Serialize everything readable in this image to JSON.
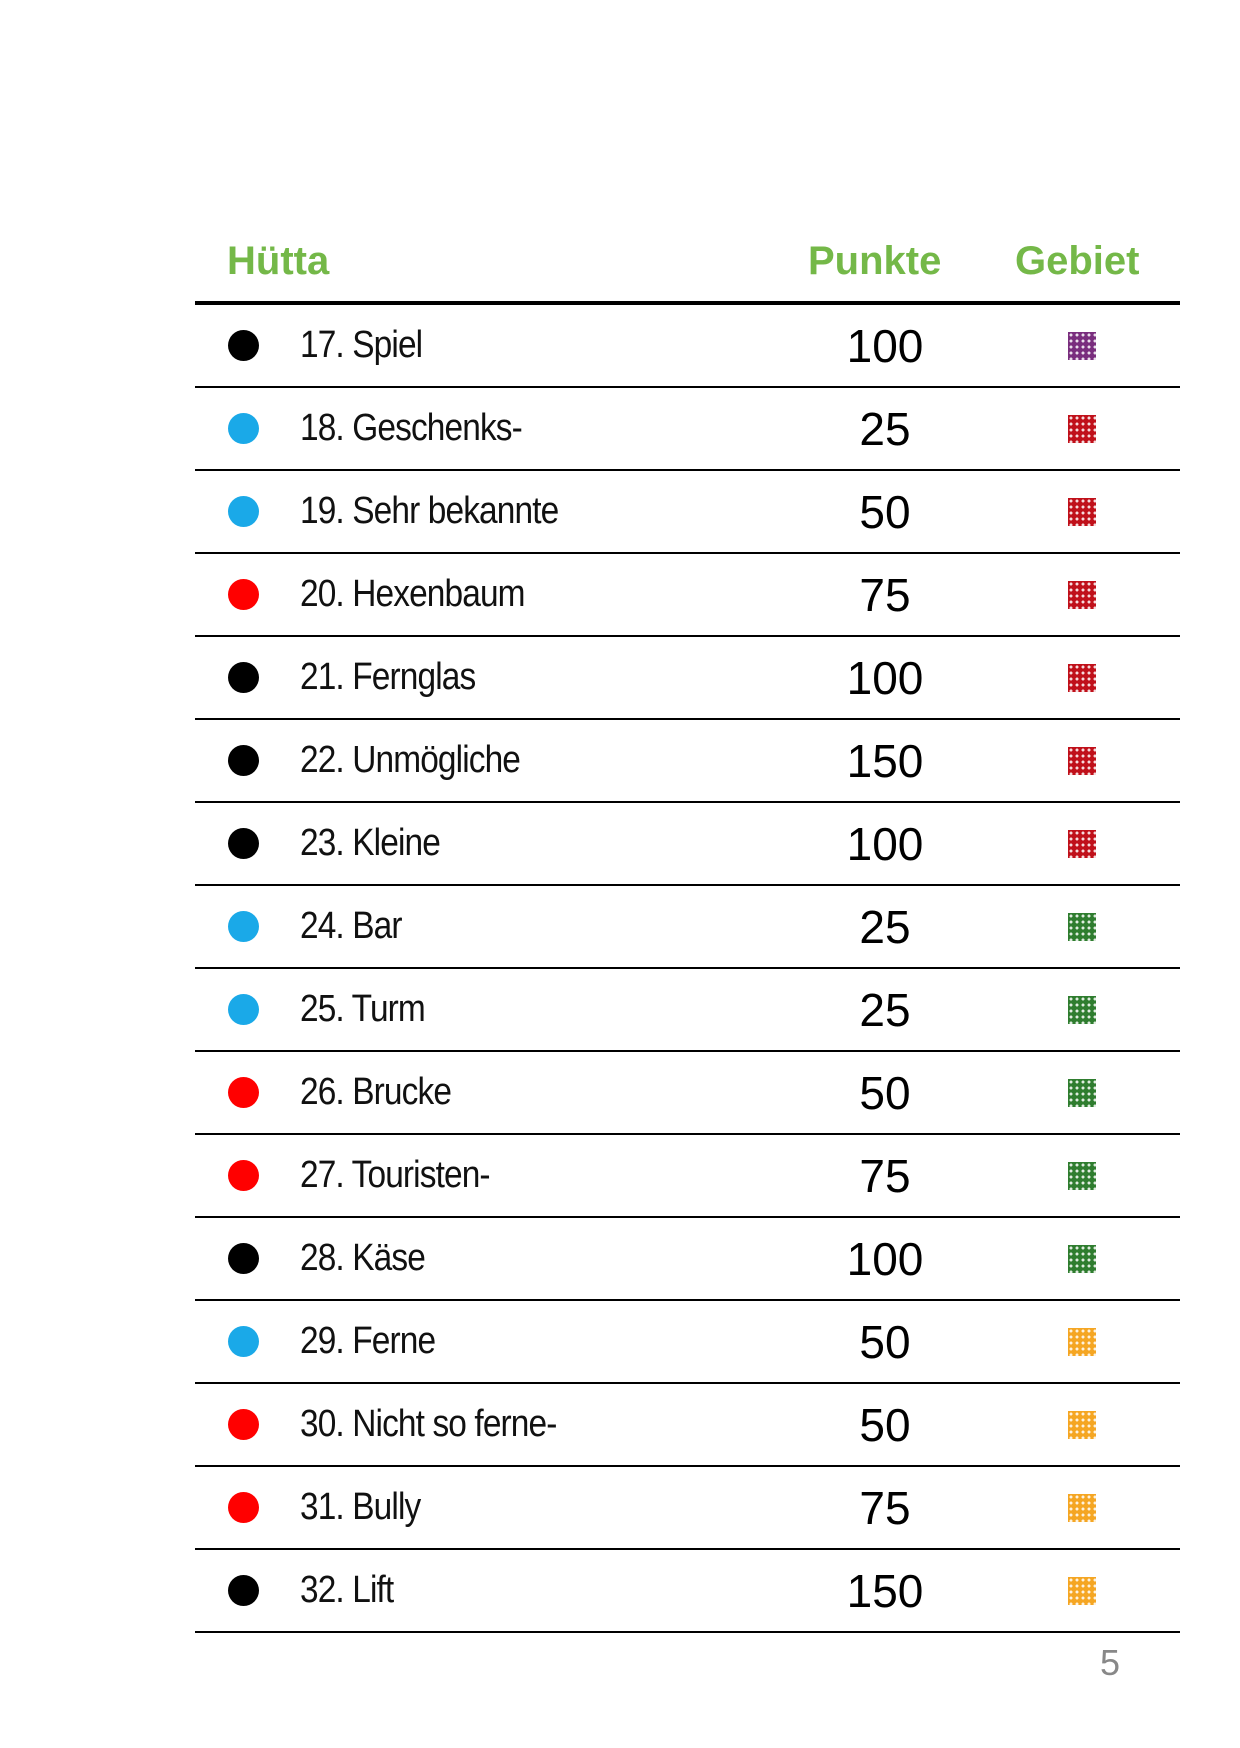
{
  "headers": {
    "name": "Hütta",
    "points": "Punkte",
    "area": "Gebiet"
  },
  "colors": {
    "header_green": "#74b848",
    "dot_black": "#000000",
    "dot_blue": "#1aa9e8",
    "dot_red": "#ff0000",
    "area_purple": "#7a2e7e",
    "area_red": "#c0101a",
    "area_green": "#2f7d2f",
    "area_orange": "#f5a623"
  },
  "rows": [
    {
      "dot": "black",
      "name": "17. Spiel",
      "points": "100",
      "area": "purple"
    },
    {
      "dot": "blue",
      "name": "18. Geschenks-",
      "points": "25",
      "area": "red"
    },
    {
      "dot": "blue",
      "name": "19. Sehr bekannte",
      "points": "50",
      "area": "red"
    },
    {
      "dot": "red",
      "name": "20. Hexenbaum",
      "points": "75",
      "area": "red"
    },
    {
      "dot": "black",
      "name": "21. Fernglas",
      "points": "100",
      "area": "red"
    },
    {
      "dot": "black",
      "name": "22. Unmögliche",
      "points": "150",
      "area": "red"
    },
    {
      "dot": "black",
      "name": "23. Kleine",
      "points": "100",
      "area": "red"
    },
    {
      "dot": "blue",
      "name": "24. Bar",
      "points": "25",
      "area": "green"
    },
    {
      "dot": "blue",
      "name": "25. Turm",
      "points": "25",
      "area": "green"
    },
    {
      "dot": "red",
      "name": "26. Brucke",
      "points": "50",
      "area": "green"
    },
    {
      "dot": "red",
      "name": "27. Touristen-",
      "points": "75",
      "area": "green"
    },
    {
      "dot": "black",
      "name": "28. Käse",
      "points": "100",
      "area": "green"
    },
    {
      "dot": "blue",
      "name": "29. Ferne",
      "points": "50",
      "area": "orange"
    },
    {
      "dot": "red",
      "name": "30. Nicht so ferne-",
      "points": "50",
      "area": "orange"
    },
    {
      "dot": "red",
      "name": "31. Bully",
      "points": "75",
      "area": "orange"
    },
    {
      "dot": "black",
      "name": "32. Lift",
      "points": "150",
      "area": "orange"
    }
  ],
  "page_number": "5"
}
